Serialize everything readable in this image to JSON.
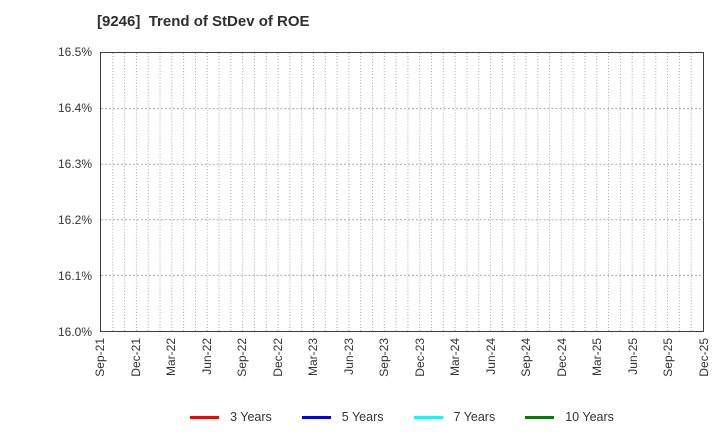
{
  "chart_data": {
    "type": "line",
    "title": "[9246]  Trend of StDev of ROE",
    "ticker": "9246",
    "title_text": "Trend of StDev of ROE",
    "xlabel": "",
    "ylabel": "",
    "ylim": [
      16.0,
      16.5
    ],
    "y_tick_labels": [
      "16.5%",
      "16.4%",
      "16.3%",
      "16.2%",
      "16.1%",
      "16.0%"
    ],
    "x_tick_labels": [
      "Sep-21",
      "Dec-21",
      "Mar-22",
      "Jun-22",
      "Sep-22",
      "Dec-22",
      "Mar-23",
      "Jun-23",
      "Sep-23",
      "Dec-23",
      "Mar-24",
      "Jun-24",
      "Sep-24",
      "Dec-24",
      "Mar-25",
      "Jun-25",
      "Sep-25",
      "Dec-25"
    ],
    "minor_x_intervals_per_tick": 3,
    "grid": true,
    "grid_color": "#a9a9a9",
    "border_color": "#3c3c3c",
    "legend_position": "bottom",
    "series": [
      {
        "name": "3 Years",
        "color": "#ff0000",
        "values": []
      },
      {
        "name": "5 Years",
        "color": "#0000ff",
        "values": []
      },
      {
        "name": "7 Years",
        "color": "#00ffff",
        "values": []
      },
      {
        "name": "10 Years",
        "color": "#008000",
        "values": []
      }
    ]
  }
}
